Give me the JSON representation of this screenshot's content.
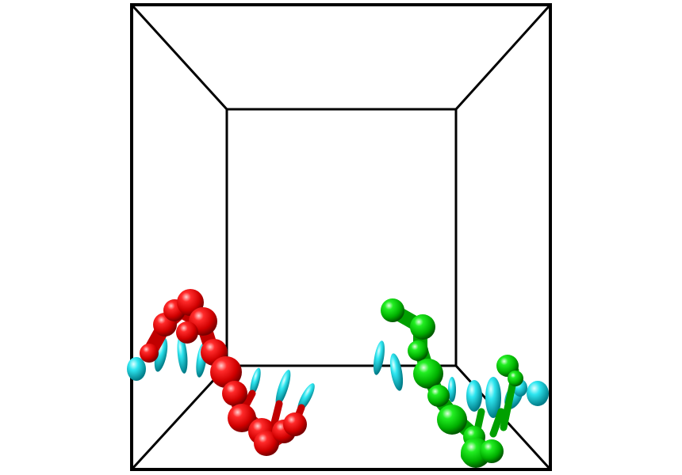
{
  "scene": {
    "background": "#ffffff",
    "box_color": "#000000",
    "chains": [
      {
        "id": "red-chain",
        "color": "#ff0000",
        "shade": "#990000",
        "highlight": "#ffdddd"
      },
      {
        "id": "green-chain",
        "color": "#00e000",
        "shade": "#007700",
        "highlight": "#ddffdd"
      }
    ],
    "ellipsoid_color": "#00e5ee",
    "ellipsoid_shade": "#008b99"
  }
}
